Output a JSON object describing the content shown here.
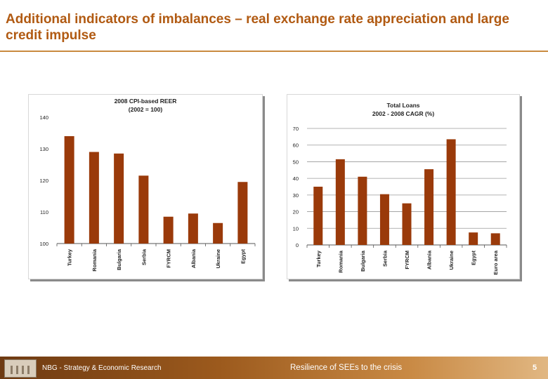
{
  "slide": {
    "title": "Additional indicators of imbalances – real exchange rate appreciation and large credit impulse"
  },
  "chart_data": [
    {
      "type": "bar",
      "title": "2008 CPI-based REER",
      "subtitle": "(2002 = 100)",
      "categories": [
        "Turkey",
        "Romania",
        "Bulgaria",
        "Serbia",
        "FYRCM",
        "Albania",
        "Ukraine",
        "Egypt"
      ],
      "values": [
        134,
        129,
        128.5,
        121.5,
        108.5,
        109.5,
        106.5,
        119.5
      ],
      "ylim": [
        100,
        140
      ],
      "yticks": [
        100,
        110,
        120,
        130,
        140
      ],
      "color": "#9a3a0a",
      "grid": false
    },
    {
      "type": "bar",
      "title": "Total Loans",
      "subtitle": "2002 - 2008 CAGR (%)",
      "categories": [
        "Turkey",
        "Romania",
        "Bulgaria",
        "Serbia",
        "FYRCM",
        "Albania",
        "Ukraine",
        "Egypt",
        "Euro area"
      ],
      "values": [
        35,
        51.5,
        41,
        30.5,
        25,
        45.5,
        63.5,
        7.5,
        7
      ],
      "ylim": [
        0,
        70
      ],
      "yticks": [
        0,
        10,
        20,
        30,
        40,
        50,
        60,
        70
      ],
      "color": "#9a3a0a",
      "grid": true
    }
  ],
  "footer": {
    "left_text": "NBG - Strategy & Economic Research",
    "center_text": "Resilience of SEEs to the crisis",
    "page_number": "5"
  }
}
